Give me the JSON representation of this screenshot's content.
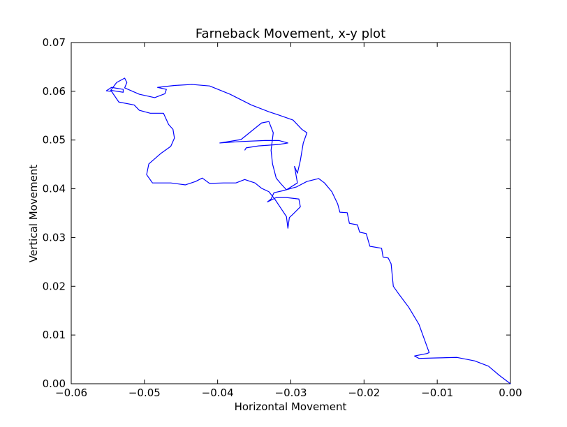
{
  "chart_data": {
    "type": "line",
    "title": "Farneback Movement, x-y plot",
    "x_label": "Horizontal Movement",
    "y_label": "Vertical Movement",
    "xlim": [
      -0.06,
      0.0
    ],
    "ylim": [
      0.0,
      0.07
    ],
    "xticks": [
      {
        "value": -0.06,
        "label": "−0.06"
      },
      {
        "value": -0.05,
        "label": "−0.05"
      },
      {
        "value": -0.04,
        "label": "−0.04"
      },
      {
        "value": -0.03,
        "label": "−0.03"
      },
      {
        "value": -0.02,
        "label": "−0.02"
      },
      {
        "value": -0.01,
        "label": "−0.01"
      },
      {
        "value": 0.0,
        "label": "0.00"
      }
    ],
    "yticks": [
      {
        "value": 0.0,
        "label": "0.00"
      },
      0.01,
      0.02,
      0.03,
      0.04,
      0.05,
      0.06,
      0.07
    ],
    "grid": false,
    "series": [
      {
        "color": "#0000ff",
        "x": [
          0,
          -0.0015,
          -0.003,
          -0.0049,
          -0.0073,
          -0.0101,
          -0.0125,
          -0.0131,
          -0.0114,
          -0.0111,
          -0.0125,
          -0.0139,
          -0.0152,
          -0.016,
          -0.0163,
          -0.0167,
          -0.0174,
          -0.0176,
          -0.0192,
          -0.0197,
          -0.0206,
          -0.0209,
          -0.022,
          -0.0223,
          -0.0233,
          -0.0236,
          -0.0244,
          -0.0254,
          -0.0262,
          -0.0278,
          -0.0292,
          -0.0311,
          -0.0323,
          -0.0327,
          -0.0332,
          -0.032,
          -0.0306,
          -0.0289,
          -0.0287,
          -0.0297,
          -0.0302,
          -0.0304,
          -0.0306,
          -0.0314,
          -0.0322,
          -0.033,
          -0.034,
          -0.0349,
          -0.0363,
          -0.0375,
          -0.0392,
          -0.0411,
          -0.0421,
          -0.043,
          -0.0444,
          -0.0464,
          -0.0489,
          -0.0497,
          -0.0494,
          -0.0478,
          -0.0464,
          -0.0459,
          -0.0461,
          -0.0467,
          -0.0474,
          -0.0492,
          -0.0507,
          -0.0514,
          -0.0535,
          -0.0545,
          -0.0552,
          -0.0545,
          -0.0529,
          -0.0529,
          -0.0546,
          -0.0538,
          -0.0527,
          -0.0524,
          -0.0527,
          -0.0507,
          -0.0486,
          -0.0472,
          -0.047,
          -0.0482,
          -0.0459,
          -0.0435,
          -0.0411,
          -0.0383,
          -0.0354,
          -0.033,
          -0.0316,
          -0.0297,
          -0.0285,
          -0.0278,
          -0.0283,
          -0.0287,
          -0.0291,
          -0.0295,
          -0.0291,
          -0.0306,
          -0.0314,
          -0.032,
          -0.0325,
          -0.0327,
          -0.0324,
          -0.033,
          -0.034,
          -0.0354,
          -0.0368,
          -0.0397,
          -0.0368,
          -0.0335,
          -0.0316,
          -0.0304,
          -0.0316,
          -0.0344,
          -0.0361,
          -0.0363
        ],
        "values": [
          0,
          0.0017,
          0.0036,
          0.0047,
          0.0054,
          0.0053,
          0.0052,
          0.0057,
          0.0062,
          0.0064,
          0.0122,
          0.0157,
          0.0183,
          0.02,
          0.0246,
          0.0258,
          0.026,
          0.0278,
          0.0282,
          0.0308,
          0.0311,
          0.0326,
          0.0329,
          0.0351,
          0.0352,
          0.0369,
          0.0394,
          0.0412,
          0.0421,
          0.0415,
          0.0404,
          0.0396,
          0.0392,
          0.0379,
          0.0373,
          0.0382,
          0.0382,
          0.0379,
          0.0363,
          0.0348,
          0.0341,
          0.0319,
          0.0343,
          0.0361,
          0.0379,
          0.0394,
          0.0401,
          0.0412,
          0.0419,
          0.0412,
          0.0412,
          0.0411,
          0.0422,
          0.0415,
          0.0408,
          0.0412,
          0.0412,
          0.0429,
          0.0451,
          0.0472,
          0.0487,
          0.0504,
          0.0522,
          0.0532,
          0.0555,
          0.0555,
          0.0561,
          0.0572,
          0.0578,
          0.06,
          0.0601,
          0.0608,
          0.0604,
          0.0598,
          0.0602,
          0.0618,
          0.0627,
          0.0618,
          0.0607,
          0.0594,
          0.0587,
          0.0595,
          0.0604,
          0.0608,
          0.0612,
          0.0614,
          0.0611,
          0.0594,
          0.0572,
          0.0558,
          0.0551,
          0.0541,
          0.0522,
          0.0515,
          0.0494,
          0.0458,
          0.0432,
          0.0446,
          0.0412,
          0.0398,
          0.0411,
          0.0422,
          0.0451,
          0.0479,
          0.0515,
          0.0538,
          0.0535,
          0.0518,
          0.0501,
          0.0494,
          0.0497,
          0.0499,
          0.0499,
          0.0494,
          0.0491,
          0.0488,
          0.0484,
          0.0479
        ]
      }
    ]
  }
}
